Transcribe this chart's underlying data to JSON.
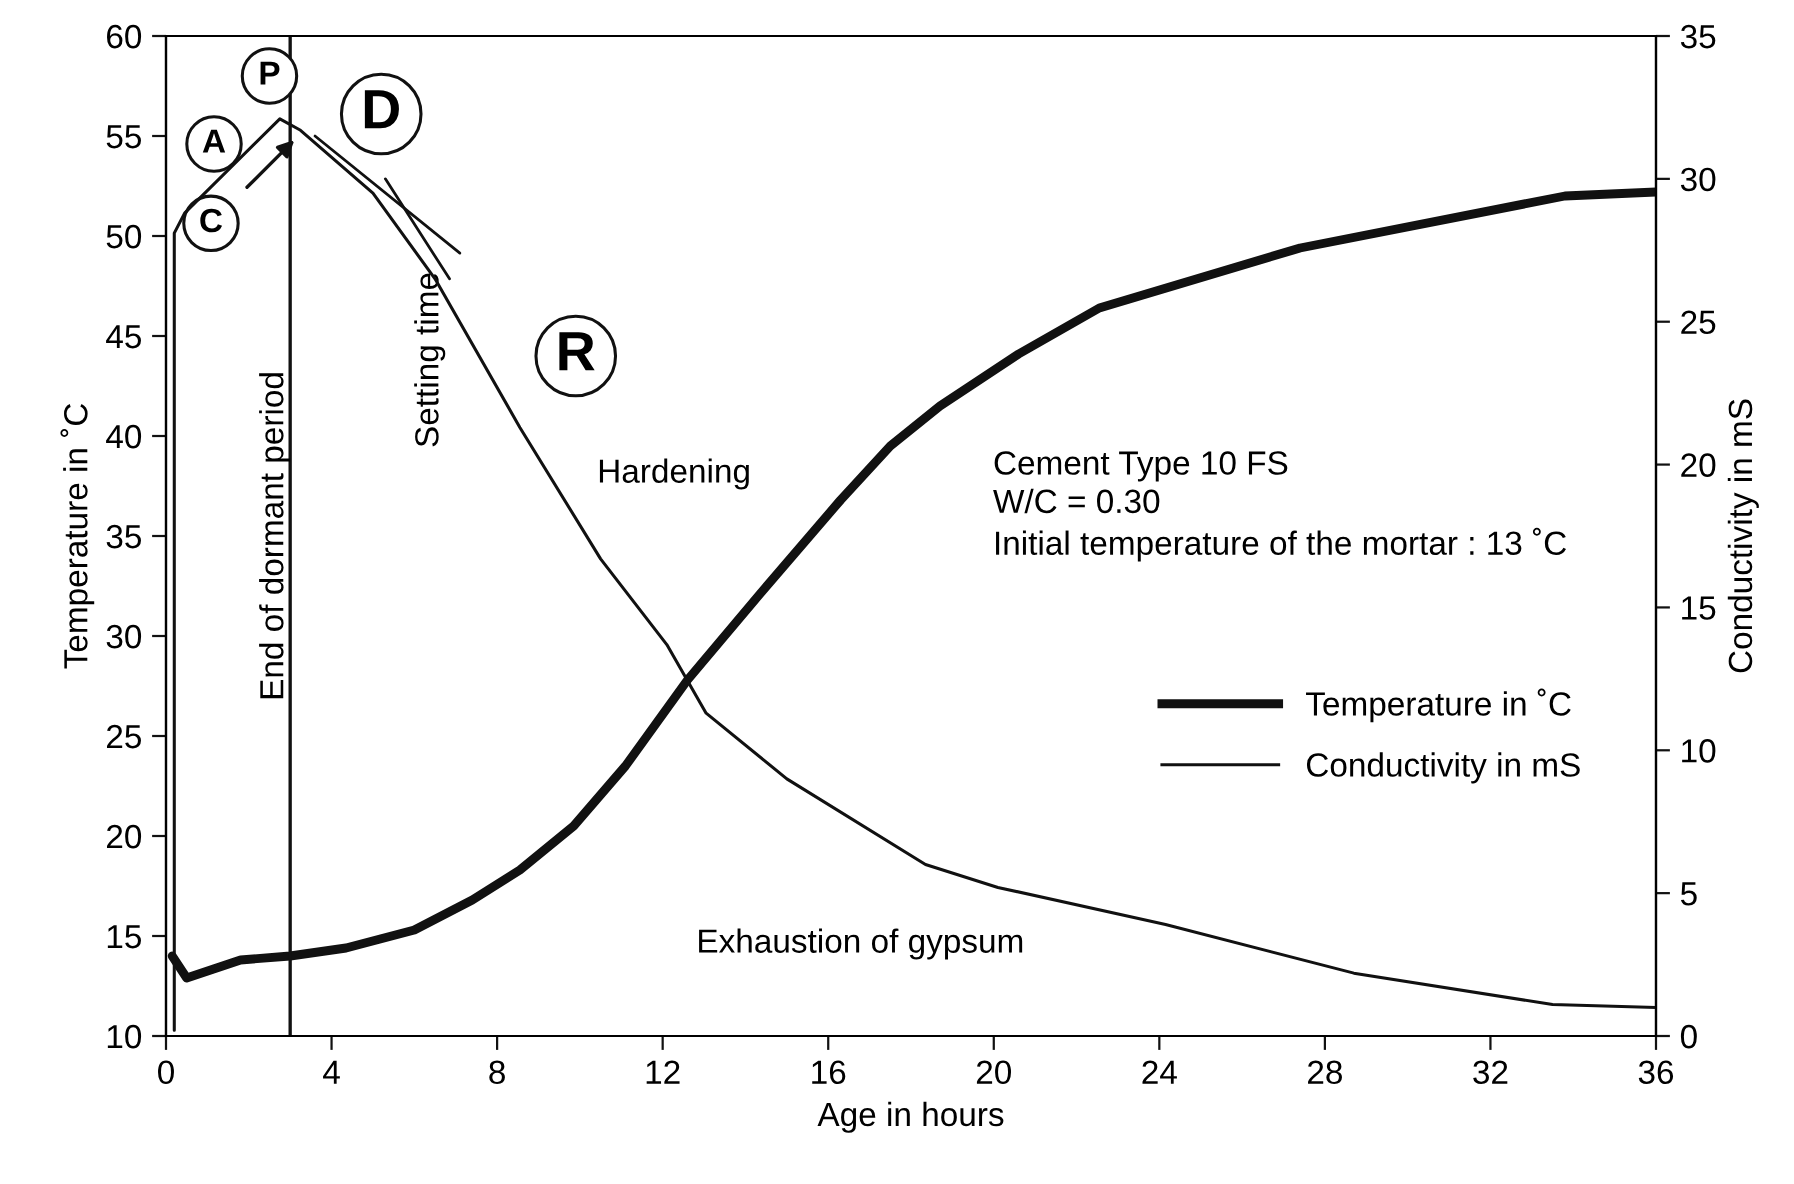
{
  "chart_data": {
    "type": "line",
    "xlabel": "Age in hours",
    "ylabel": "Temperature in ˚C",
    "y2label": "Conductivity in mS",
    "xlim": [
      0,
      36
    ],
    "xticks": [
      0,
      4,
      8,
      12,
      16,
      20,
      24,
      28,
      32,
      36
    ],
    "ylim": [
      10,
      60
    ],
    "yticks": [
      10,
      15,
      20,
      25,
      30,
      35,
      40,
      45,
      50,
      55,
      60
    ],
    "y2lim": [
      0,
      35
    ],
    "y2ticks": [
      0,
      5,
      10,
      15,
      20,
      25,
      30,
      35
    ],
    "grid": false,
    "legend": "right",
    "marker": "none",
    "line_style": "solid",
    "series": [
      {
        "name": "Temperature in ˚C",
        "color": "#111111",
        "x": [
          0.15,
          0.5,
          1.8,
          3.0,
          4.35,
          6.0,
          7.4,
          8.55,
          9.85,
          11.1,
          12.6,
          14.35,
          16.3,
          17.5,
          18.7,
          20.6,
          22.55,
          27.4,
          33.8,
          36
        ],
        "values": [
          14.0,
          12.9,
          13.8,
          14.0,
          14.4,
          15.3,
          16.8,
          18.3,
          20.5,
          23.5,
          27.8,
          32.1,
          36.8,
          39.5,
          41.5,
          44.1,
          46.4,
          49.4,
          52.0,
          52.2
        ]
      },
      {
        "name": "Conductivity in mS",
        "color": "#111111",
        "axis": "y2",
        "x": [
          0.2,
          0.2,
          0.45,
          2.75,
          3.25,
          5.0,
          6.5,
          8.55,
          10.5,
          12.1,
          13.05,
          15.0,
          18.35,
          20.1,
          24.15,
          28.7,
          33.5,
          36
        ],
        "values": [
          0.2,
          28.1,
          28.8,
          32.1,
          31.7,
          29.5,
          26.5,
          21.3,
          16.7,
          13.7,
          11.3,
          9.0,
          6.0,
          5.2,
          3.9,
          2.2,
          1.1,
          1.0
        ]
      },
      {
        "color": "#111111",
        "axis": "y2",
        "x": [
          5.3,
          6.85
        ],
        "values": [
          30.0,
          26.5
        ]
      },
      {
        "color": "#111111",
        "axis": "y2",
        "x": [
          3.6,
          7.1
        ],
        "values": [
          31.5,
          27.4
        ]
      }
    ],
    "ref_lines": [
      {
        "axis": "x",
        "value": 3,
        "label": "End of dormant period",
        "color": "#111111"
      }
    ],
    "annotations": [
      {
        "text": "A",
        "x": 1.16,
        "y": 54.6
      },
      {
        "text": "P",
        "x": 2.5,
        "y": 58
      },
      {
        "text": "C",
        "x": 3.1,
        "y": 54.8
      },
      {
        "text": "D",
        "x": 5.2,
        "y": 56.1
      },
      {
        "text": "R",
        "x": 9.9,
        "y": 44
      },
      "Setting time",
      "Hardening",
      "Exhaustion of gypsum",
      "Cement Type 10 FS\nW/C = 0.30\nInitial temperature of the mortar : 13 ˚C"
    ]
  }
}
